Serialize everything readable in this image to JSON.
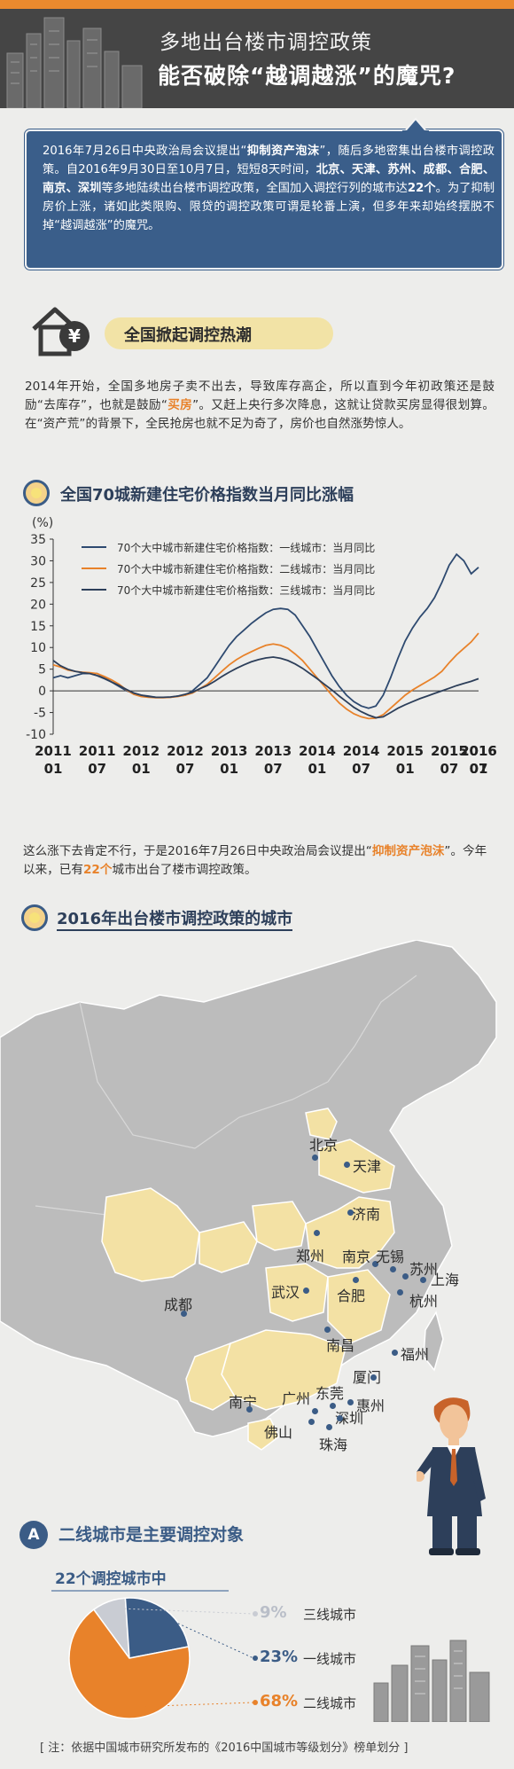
{
  "header": {
    "title_line1": "多地出台楼市调控政策",
    "title_line2": "能否破除“越调越涨”的魔咒?"
  },
  "intro": {
    "text_a": "2016年7月26日中央政治局会议提出“",
    "kw1": "抑制资产泡沫",
    "text_b": "”，随后多地密集出台楼市调控政策。自2016年9月30日至10月7日，短短8天时间，",
    "cities": "北京、天津、苏州、成都、合肥、南京、深圳",
    "text_c": "等多地陆续出台楼市调控政策，全国加入调控行列的城市达",
    "count": "22个",
    "text_d": "。为了抑制房价上涨，诸如此类限购、限贷的调控政策可谓是轮番上演，但多年来却始终摆脱不掉“越调越涨”的魔咒。"
  },
  "section1": {
    "title": "全国掀起调控热潮",
    "icon": "house-yen-icon",
    "para_a": "2014年开始，全国多地房子卖不出去，导致库存高企，所以直到今年初政策还是鼓励“去库存”，也就是鼓励“",
    "para_kw": "买房",
    "para_b": "”。又赶上央行多次降息，这就让贷款买房显得很划算。在“资产荒”的背景下，全民抢房也就不足为奇了，房价也自然涨势惊人。"
  },
  "chart_section": {
    "title": "全国70城新建住宅价格指数当月同比涨幅"
  },
  "chart_data": {
    "type": "line",
    "title": "全国70城新建住宅价格指数当月同比涨幅",
    "ylabel": "(%)",
    "ylim": [
      -10,
      35
    ],
    "yticks": [
      -10,
      -5,
      0,
      5,
      10,
      15,
      20,
      25,
      30,
      35
    ],
    "x_tick_labels": [
      [
        "2011",
        "01"
      ],
      [
        "2011",
        "07"
      ],
      [
        "2012",
        "01"
      ],
      [
        "2012",
        "07"
      ],
      [
        "2013",
        "01"
      ],
      [
        "2013",
        "07"
      ],
      [
        "2014",
        "01"
      ],
      [
        "2014",
        "07"
      ],
      [
        "2015",
        "01"
      ],
      [
        "2015",
        "07"
      ],
      [
        "2016",
        "01"
      ],
      [
        "2016",
        "07"
      ]
    ],
    "legend_position": "top-right",
    "series": [
      {
        "name": "70个大中城市新建住宅价格指数：一线城市：当月同比",
        "color": "#2e4a70",
        "points": [
          [
            0,
            3.0
          ],
          [
            1,
            3.5
          ],
          [
            2,
            3.0
          ],
          [
            3,
            3.5
          ],
          [
            4,
            4.0
          ],
          [
            5,
            4.0
          ],
          [
            6,
            4.0
          ],
          [
            7,
            3.0
          ],
          [
            8,
            2.0
          ],
          [
            9,
            1.0
          ],
          [
            10,
            0.0
          ],
          [
            11,
            -0.5
          ],
          [
            12,
            -1.0
          ],
          [
            13,
            -1.2
          ],
          [
            14,
            -1.5
          ],
          [
            15,
            -1.5
          ],
          [
            16,
            -1.5
          ],
          [
            17,
            -1.2
          ],
          [
            18,
            -1.0
          ],
          [
            19,
            0.0
          ],
          [
            20,
            1.5
          ],
          [
            21,
            3.0
          ],
          [
            22,
            5.5
          ],
          [
            23,
            8.0
          ],
          [
            24,
            10.5
          ],
          [
            25,
            12.5
          ],
          [
            26,
            14.0
          ],
          [
            27,
            15.5
          ],
          [
            28,
            16.8
          ],
          [
            29,
            18.0
          ],
          [
            30,
            18.8
          ],
          [
            31,
            19.0
          ],
          [
            32,
            18.8
          ],
          [
            33,
            17.5
          ],
          [
            34,
            15.0
          ],
          [
            35,
            12.5
          ],
          [
            36,
            9.5
          ],
          [
            37,
            6.5
          ],
          [
            38,
            3.5
          ],
          [
            39,
            1.0
          ],
          [
            40,
            -1.0
          ],
          [
            41,
            -2.5
          ],
          [
            42,
            -3.5
          ],
          [
            43,
            -4.0
          ],
          [
            44,
            -3.5
          ],
          [
            45,
            -1.0
          ],
          [
            46,
            3.0
          ],
          [
            47,
            7.5
          ],
          [
            48,
            11.5
          ],
          [
            49,
            14.5
          ],
          [
            50,
            17.0
          ],
          [
            51,
            19.0
          ],
          [
            52,
            21.5
          ],
          [
            53,
            25.0
          ],
          [
            54,
            29.0
          ],
          [
            55,
            31.5
          ],
          [
            56,
            30.0
          ],
          [
            57,
            27.0
          ],
          [
            58,
            28.5
          ]
        ]
      },
      {
        "name": "70个大中城市新建住宅价格指数：二线城市：当月同比",
        "color": "#e8822a",
        "points": [
          [
            0,
            6.0
          ],
          [
            1,
            5.5
          ],
          [
            2,
            4.8
          ],
          [
            3,
            4.5
          ],
          [
            4,
            4.3
          ],
          [
            5,
            4.2
          ],
          [
            6,
            4.0
          ],
          [
            7,
            3.3
          ],
          [
            8,
            2.5
          ],
          [
            9,
            1.5
          ],
          [
            10,
            0.2
          ],
          [
            11,
            -0.8
          ],
          [
            12,
            -1.3
          ],
          [
            13,
            -1.5
          ],
          [
            14,
            -1.6
          ],
          [
            15,
            -1.6
          ],
          [
            16,
            -1.5
          ],
          [
            17,
            -1.3
          ],
          [
            18,
            -1.0
          ],
          [
            19,
            -0.5
          ],
          [
            20,
            0.5
          ],
          [
            21,
            1.5
          ],
          [
            22,
            3.0
          ],
          [
            23,
            4.5
          ],
          [
            24,
            6.0
          ],
          [
            25,
            7.2
          ],
          [
            26,
            8.2
          ],
          [
            27,
            9.0
          ],
          [
            28,
            9.8
          ],
          [
            29,
            10.5
          ],
          [
            30,
            10.8
          ],
          [
            31,
            10.5
          ],
          [
            32,
            9.8
          ],
          [
            33,
            8.5
          ],
          [
            34,
            7.0
          ],
          [
            35,
            5.0
          ],
          [
            36,
            3.0
          ],
          [
            37,
            1.0
          ],
          [
            38,
            -1.0
          ],
          [
            39,
            -2.8
          ],
          [
            40,
            -4.2
          ],
          [
            41,
            -5.3
          ],
          [
            42,
            -6.0
          ],
          [
            43,
            -6.4
          ],
          [
            44,
            -6.3
          ],
          [
            45,
            -5.5
          ],
          [
            46,
            -4.0
          ],
          [
            47,
            -2.5
          ],
          [
            48,
            -1.0
          ],
          [
            49,
            0.2
          ],
          [
            50,
            1.2
          ],
          [
            51,
            2.2
          ],
          [
            52,
            3.2
          ],
          [
            53,
            4.5
          ],
          [
            54,
            6.5
          ],
          [
            55,
            8.3
          ],
          [
            56,
            9.8
          ],
          [
            57,
            11.3
          ],
          [
            58,
            13.3
          ]
        ]
      },
      {
        "name": "70个大中城市新建住宅价格指数：三线城市：当月同比",
        "color": "#2d3f5a",
        "points": [
          [
            0,
            7.0
          ],
          [
            1,
            5.8
          ],
          [
            2,
            5.0
          ],
          [
            3,
            4.5
          ],
          [
            4,
            4.2
          ],
          [
            5,
            4.0
          ],
          [
            6,
            3.5
          ],
          [
            7,
            2.8
          ],
          [
            8,
            2.0
          ],
          [
            9,
            1.2
          ],
          [
            10,
            0.3
          ],
          [
            11,
            -0.5
          ],
          [
            12,
            -1.0
          ],
          [
            13,
            -1.3
          ],
          [
            14,
            -1.5
          ],
          [
            15,
            -1.5
          ],
          [
            16,
            -1.4
          ],
          [
            17,
            -1.2
          ],
          [
            18,
            -0.8
          ],
          [
            19,
            -0.3
          ],
          [
            20,
            0.5
          ],
          [
            21,
            1.2
          ],
          [
            22,
            2.2
          ],
          [
            23,
            3.3
          ],
          [
            24,
            4.3
          ],
          [
            25,
            5.2
          ],
          [
            26,
            6.0
          ],
          [
            27,
            6.7
          ],
          [
            28,
            7.2
          ],
          [
            29,
            7.6
          ],
          [
            30,
            7.8
          ],
          [
            31,
            7.5
          ],
          [
            32,
            7.0
          ],
          [
            33,
            6.2
          ],
          [
            34,
            5.2
          ],
          [
            35,
            4.0
          ],
          [
            36,
            2.8
          ],
          [
            37,
            1.5
          ],
          [
            38,
            0.2
          ],
          [
            39,
            -1.2
          ],
          [
            40,
            -2.5
          ],
          [
            41,
            -3.8
          ],
          [
            42,
            -4.8
          ],
          [
            43,
            -5.6
          ],
          [
            44,
            -6.2
          ],
          [
            45,
            -6.0
          ],
          [
            46,
            -5.0
          ],
          [
            47,
            -4.0
          ],
          [
            48,
            -3.2
          ],
          [
            49,
            -2.5
          ],
          [
            50,
            -1.8
          ],
          [
            51,
            -1.2
          ],
          [
            52,
            -0.6
          ],
          [
            53,
            0.0
          ],
          [
            54,
            0.6
          ],
          [
            55,
            1.2
          ],
          [
            56,
            1.7
          ],
          [
            57,
            2.2
          ],
          [
            58,
            2.8
          ]
        ]
      }
    ]
  },
  "para2": {
    "text_a": "这么涨下去肯定不行，于是2016年7月26日中央政治局会议提出“",
    "kw": "抑制资产泡沫",
    "text_b": "”。今年以来，已有",
    "count": "22个",
    "text_c": "城市出台了楼市调控政策。"
  },
  "map_section": {
    "title": "2016年出台楼市调控政策的城市",
    "cities": [
      "北京",
      "天津",
      "济南",
      "郑州",
      "南京",
      "无锡",
      "苏州",
      "上海",
      "杭州",
      "成都",
      "武汉",
      "合肥",
      "南昌",
      "福州",
      "厦门",
      "南宁",
      "广州",
      "东莞",
      "惠州",
      "深圳",
      "佛山",
      "珠海"
    ]
  },
  "section3": {
    "badge": "A",
    "title": "二线城市是主要调控对象",
    "subtitle": "22个调控城市中",
    "chart_data": {
      "type": "pie",
      "categories": [
        "三线城市",
        "一线城市",
        "二线城市"
      ],
      "values": [
        9,
        23,
        68
      ],
      "labels": [
        "9%",
        "23%",
        "68%"
      ],
      "colors": [
        "#c9ccd3",
        "#3b5c86",
        "#e8822a"
      ]
    }
  },
  "footnote": "[ 注：依据中国城市研究所发布的《2016中国城市等级划分》榜单划分 ]"
}
